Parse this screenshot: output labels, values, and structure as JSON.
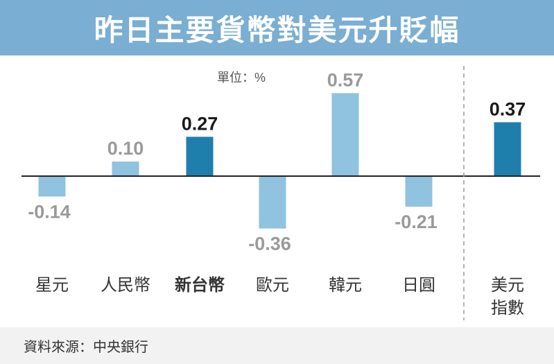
{
  "title": "昨日主要貨幣對美元升貶幅",
  "unit": "單位：%",
  "source": "資料來源：中央銀行",
  "colors": {
    "banner": "#7aaed3",
    "bar_normal": "#8fc3df",
    "bar_highlight": "#1f7fac",
    "label_normal": "#9a9a9a",
    "label_highlight": "#1a1a1a"
  },
  "chart_data": {
    "type": "bar",
    "title": "昨日主要貨幣對美元升貶幅",
    "unit": "單位：%",
    "categories": [
      "星元",
      "人民幣",
      "新台幣",
      "歐元",
      "韓元",
      "日圓",
      "美元指數"
    ],
    "category_lines": [
      [
        "星元"
      ],
      [
        "人民幣"
      ],
      [
        "新台幣"
      ],
      [
        "歐元"
      ],
      [
        "韓元"
      ],
      [
        "日圓"
      ],
      [
        "美元",
        "指數"
      ]
    ],
    "values": [
      -0.14,
      0.1,
      0.27,
      -0.36,
      0.57,
      -0.21,
      0.37
    ],
    "value_labels": [
      "-0.14",
      "0.10",
      "0.27",
      "-0.36",
      "0.57",
      "-0.21",
      "0.37"
    ],
    "highlight": [
      false,
      false,
      true,
      false,
      false,
      false,
      true
    ],
    "separator_before_last": true,
    "ylim": [
      -0.4,
      0.6
    ],
    "grid": false,
    "legend": "none"
  }
}
